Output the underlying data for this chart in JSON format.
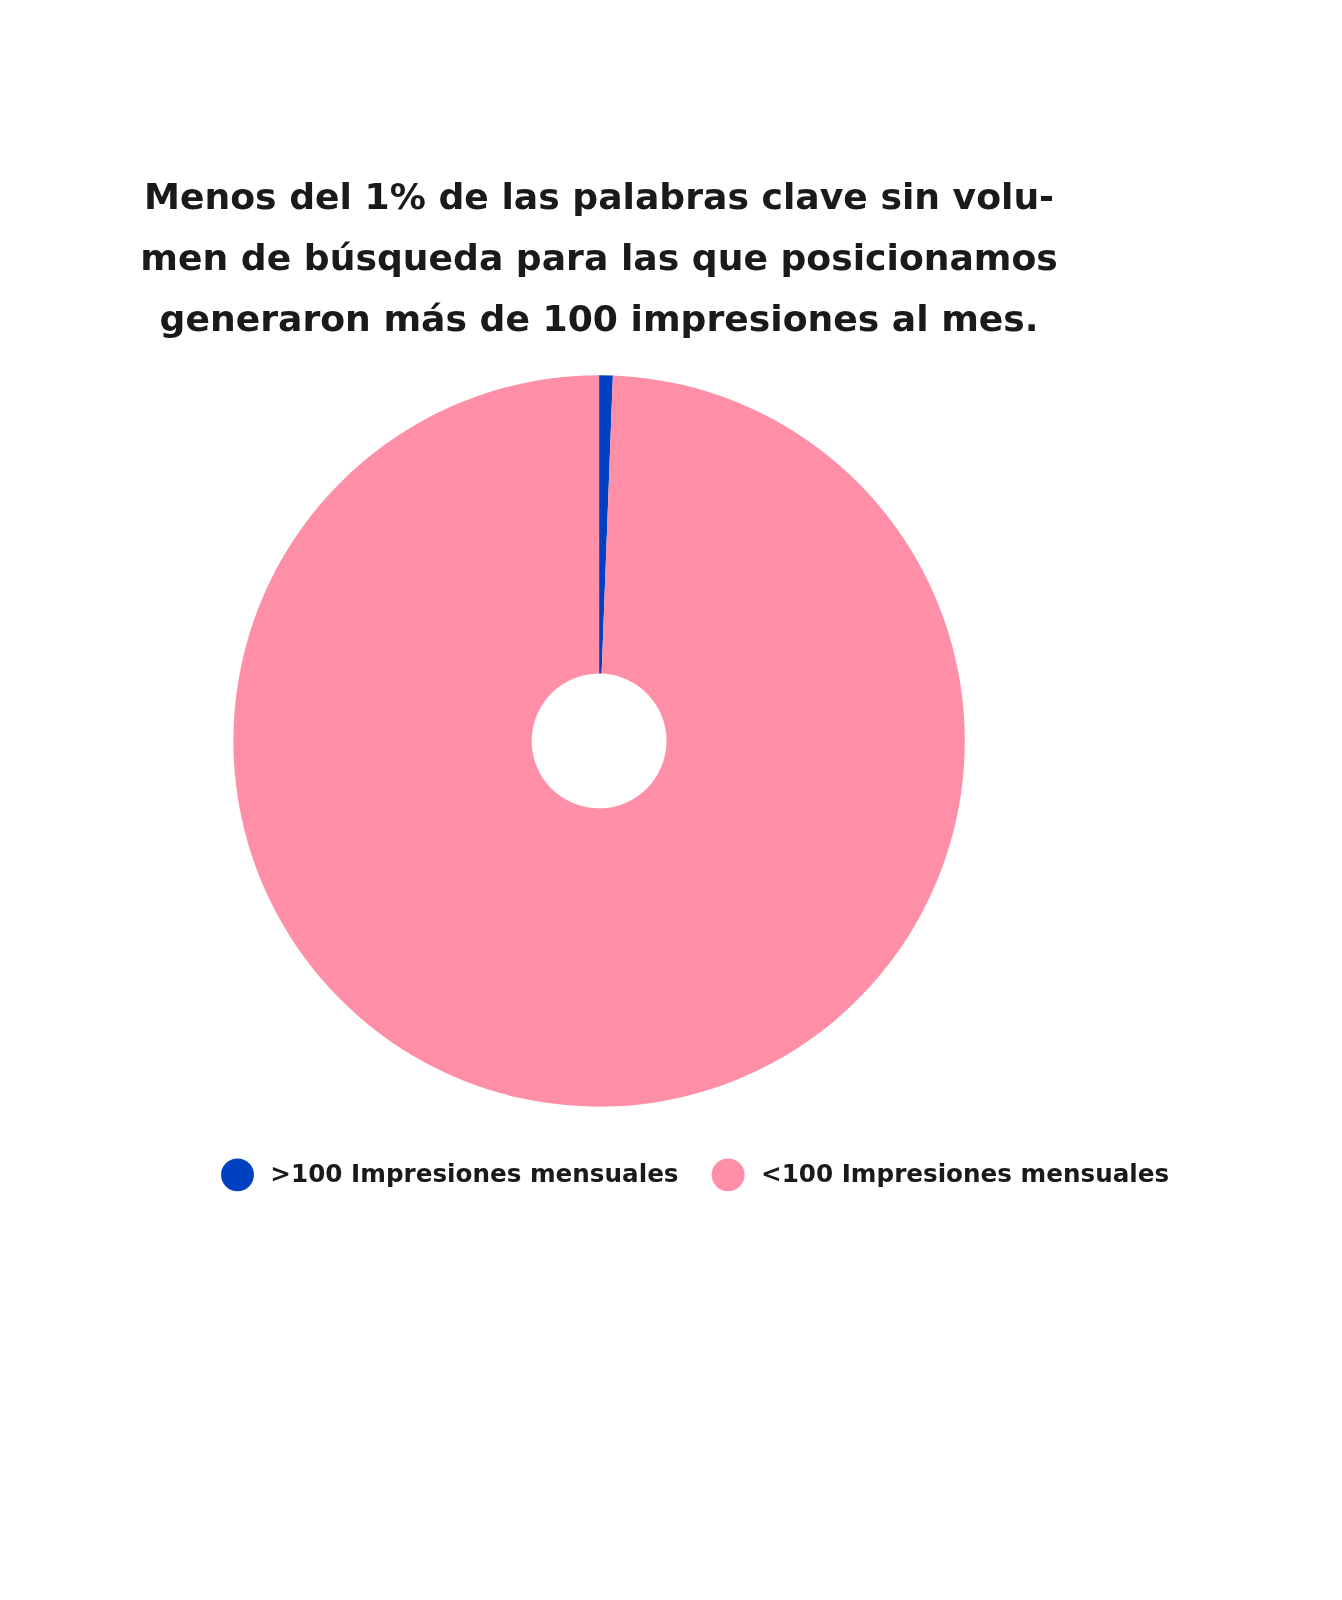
{
  "chart_data": {
    "type": "donut",
    "title": "Menos del 1% de las palabras clave sin volu-\nmen de búsqueda para las que posicionamos\ngeneraron más de 100 impresiones al mes.",
    "categories": [
      ">100 Impresiones mensuales",
      "<100 Impresiones mensuales"
    ],
    "values": [
      0.6,
      99.4
    ],
    "colors": [
      "#0041c2",
      "#ff8fa6"
    ],
    "legend": "bottom"
  }
}
